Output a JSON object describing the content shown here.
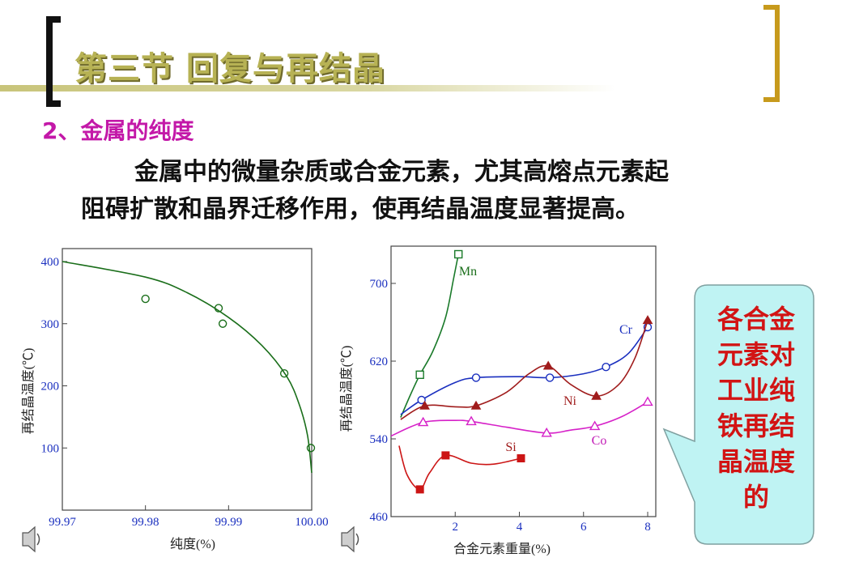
{
  "slide": {
    "title": "第三节 回复与再结晶",
    "subtitle": "2、金属的纯度",
    "body_line1": "金属中的微量杂质或合金元素，尤其高熔点元素起",
    "body_line2": "阻碍扩散和晶界迁移作用，使再结晶温度显著提高。",
    "callout": "各合金元素对工业纯铁再结晶温度的",
    "colors": {
      "title": "#b7b254",
      "subtitle": "#c318a8",
      "callout_text": "#d21414",
      "callout_bg": "#bff3f3"
    }
  },
  "chart_data": [
    {
      "type": "scatter",
      "xlabel": "纯度(%)",
      "ylabel": "再结晶温度(℃)",
      "xlim": [
        99.97,
        100.0
      ],
      "ylim": [
        0,
        400
      ],
      "x_ticks": [
        "99.97",
        "99.98",
        "99.99",
        "100.00"
      ],
      "y_ticks": [
        "100",
        "200",
        "300",
        "400"
      ],
      "points": [
        {
          "x": 99.98,
          "y": 340
        },
        {
          "x": 99.9888,
          "y": 325
        },
        {
          "x": 99.9893,
          "y": 300
        },
        {
          "x": 99.9967,
          "y": 220
        },
        {
          "x": 99.9999,
          "y": 100
        }
      ],
      "curve": [
        {
          "x": 99.97,
          "y": 400
        },
        {
          "x": 99.98,
          "y": 375
        },
        {
          "x": 99.985,
          "y": 350
        },
        {
          "x": 99.99,
          "y": 310
        },
        {
          "x": 99.994,
          "y": 265
        },
        {
          "x": 99.997,
          "y": 215
        },
        {
          "x": 99.9985,
          "y": 170
        },
        {
          "x": 99.9995,
          "y": 120
        },
        {
          "x": 100.0,
          "y": 60
        }
      ],
      "color": "#1a6e1a"
    },
    {
      "type": "line",
      "xlabel": "合金元素重量(%)",
      "ylabel": "再结晶温度(℃)",
      "xlim": [
        0,
        8
      ],
      "ylim": [
        460,
        740
      ],
      "x_ticks": [
        "2",
        "4",
        "6",
        "8"
      ],
      "y_ticks": [
        "460",
        "540",
        "620",
        "700"
      ],
      "series": [
        {
          "name": "Mn",
          "color": "#1a7a2a",
          "marker": "square-open",
          "points": [
            [
              0.9,
              606
            ],
            [
              2.1,
              730
            ]
          ],
          "curve": [
            [
              0.3,
              562
            ],
            [
              0.6,
              585
            ],
            [
              0.9,
              606
            ],
            [
              1.3,
              630
            ],
            [
              1.7,
              665
            ],
            [
              1.95,
              705
            ],
            [
              2.1,
              730
            ]
          ]
        },
        {
          "name": "Cr",
          "color": "#1a2fbf",
          "marker": "circle-open",
          "points": [
            [
              0.95,
              580
            ],
            [
              2.65,
              603
            ],
            [
              4.95,
              603
            ],
            [
              6.7,
              614
            ],
            [
              8.0,
              655
            ]
          ],
          "curve": [
            [
              0.3,
              565
            ],
            [
              0.95,
              580
            ],
            [
              2.0,
              598
            ],
            [
              2.65,
              603
            ],
            [
              4.0,
              604
            ],
            [
              4.95,
              603
            ],
            [
              6.0,
              607
            ],
            [
              6.7,
              614
            ],
            [
              7.4,
              628
            ],
            [
              8.0,
              655
            ]
          ]
        },
        {
          "name": "Ni",
          "color": "#a01c1c",
          "marker": "triangle-filled",
          "points": [
            [
              1.05,
              574
            ],
            [
              2.65,
              574
            ],
            [
              4.9,
              615
            ],
            [
              6.4,
              584
            ],
            [
              8.0,
              662
            ]
          ],
          "curve": [
            [
              0.3,
              560
            ],
            [
              1.05,
              574
            ],
            [
              2.0,
              573
            ],
            [
              2.65,
              574
            ],
            [
              3.6,
              588
            ],
            [
              4.3,
              607
            ],
            [
              4.9,
              615
            ],
            [
              5.6,
              596
            ],
            [
              6.4,
              584
            ],
            [
              7.1,
              596
            ],
            [
              7.6,
              623
            ],
            [
              8.0,
              662
            ]
          ]
        },
        {
          "name": "Co",
          "color": "#d621c8",
          "marker": "triangle-open",
          "points": [
            [
              1.0,
              557
            ],
            [
              2.5,
              558
            ],
            [
              4.85,
              546
            ],
            [
              6.35,
              553
            ],
            [
              8.0,
              578
            ]
          ],
          "curve": [
            [
              0.0,
              543
            ],
            [
              1.0,
              557
            ],
            [
              2.0,
              559
            ],
            [
              2.5,
              558
            ],
            [
              3.6,
              552
            ],
            [
              4.85,
              546
            ],
            [
              5.6,
              549
            ],
            [
              6.35,
              553
            ],
            [
              7.2,
              563
            ],
            [
              8.0,
              578
            ]
          ]
        },
        {
          "name": "Si",
          "color": "#cc1515",
          "marker": "square-filled",
          "points": [
            [
              0.9,
              488
            ],
            [
              1.7,
              523
            ],
            [
              4.05,
              520
            ]
          ],
          "curve": [
            [
              0.25,
              533
            ],
            [
              0.5,
              503
            ],
            [
              0.9,
              488
            ],
            [
              1.2,
              505
            ],
            [
              1.7,
              523
            ],
            [
              2.5,
              515
            ],
            [
              3.2,
              514
            ],
            [
              4.05,
              520
            ]
          ]
        }
      ]
    }
  ]
}
